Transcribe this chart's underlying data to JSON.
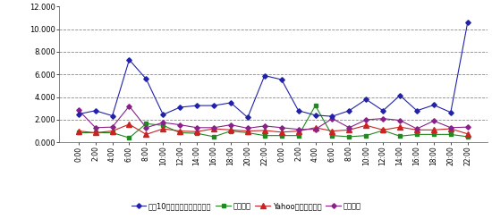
{
  "x_labels": [
    "0:00",
    "2:00",
    "4:00",
    "6:00",
    "8:00",
    "10:00",
    "12:00",
    "14:00",
    "16:00",
    "18:00",
    "20:00",
    "22:00",
    "0:00",
    "2:00",
    "4:00",
    "6:00",
    "8:00",
    "10:00",
    "12:00",
    "14:00",
    "16:00",
    "18:00",
    "20:00",
    "22:00"
  ],
  "blue": [
    2.5,
    2.8,
    2.35,
    7.3,
    5.6,
    2.45,
    3.1,
    3.25,
    3.25,
    3.5,
    2.2,
    5.9,
    5.55,
    2.8,
    2.4,
    2.3,
    2.8,
    3.8,
    2.8,
    4.15,
    2.8,
    3.3,
    2.65,
    10.6
  ],
  "green": [
    0.85,
    0.85,
    0.85,
    0.4,
    1.65,
    1.5,
    0.85,
    0.8,
    0.5,
    1.0,
    0.85,
    0.6,
    0.6,
    0.6,
    3.25,
    0.6,
    0.5,
    0.6,
    1.05,
    0.55,
    0.7,
    0.7,
    0.7,
    0.5
  ],
  "red": [
    1.0,
    0.85,
    1.0,
    1.6,
    0.7,
    1.2,
    1.0,
    0.95,
    1.2,
    1.1,
    1.0,
    1.05,
    0.9,
    1.0,
    1.3,
    1.0,
    1.1,
    1.5,
    1.1,
    1.35,
    1.1,
    1.1,
    1.2,
    0.75
  ],
  "purple": [
    2.85,
    1.3,
    1.35,
    3.2,
    1.3,
    1.75,
    1.55,
    1.3,
    1.3,
    1.55,
    1.25,
    1.45,
    1.3,
    1.15,
    1.15,
    2.1,
    1.3,
    2.0,
    2.1,
    1.95,
    1.2,
    1.9,
    1.3,
    1.35
  ],
  "blue_color": "#2222aa",
  "green_color": "#228822",
  "red_color": "#cc2222",
  "purple_color": "#882288",
  "ytick_vals": [
    0,
    2,
    4,
    6,
    8,
    10,
    12
  ],
  "ytick_labels": [
    "0.000",
    "2.000",
    "4.000",
    "6.000",
    "8.000",
    "10.000",
    "12.000"
  ],
  "grid_lines": [
    2,
    4,
    6,
    8,
    10
  ],
  "ylim": [
    0,
    12
  ],
  "legend_labels": [
    "上众10サイトの平均表示速度",
    "無印良品",
    "Yahooショッピング",
    "ニッセン"
  ]
}
